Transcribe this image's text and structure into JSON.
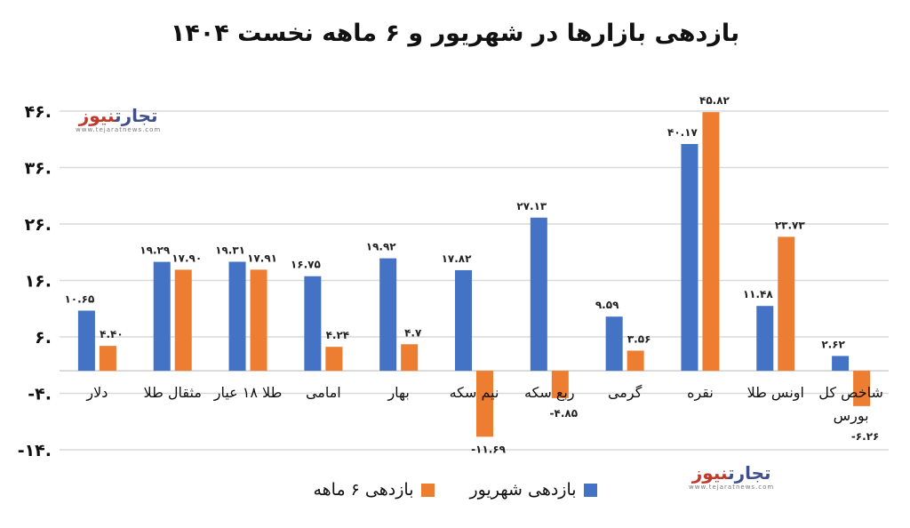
{
  "chart_data": {
    "type": "bar",
    "title": "بازدهی بازارها در شهریور و ۶ ماهه نخست ۱۴۰۴",
    "categories": [
      "دلار",
      "مثقال طلا",
      "طلا ۱۸ عیار",
      "امامی",
      "بهار",
      "نیم سکه",
      "ربع سکه",
      "گرمی",
      "نقره",
      "اونس طلا",
      "شاخص کل بورس"
    ],
    "series": [
      {
        "name": "بازدهی شهریور",
        "color": "#4472C4",
        "values": [
          10.65,
          19.29,
          19.31,
          16.75,
          19.92,
          17.82,
          27.13,
          9.59,
          40.17,
          11.48,
          2.62
        ],
        "labels": [
          "۱۰.۶۵",
          "۱۹.۲۹",
          "۱۹.۳۱",
          "۱۶.۷۵",
          "۱۹.۹۲",
          "۱۷.۸۲",
          "۲۷.۱۳",
          "۹.۵۹",
          "۴۰.۱۷",
          "۱۱.۴۸",
          "۲.۶۲"
        ]
      },
      {
        "name": "بازدهی ۶ ماهه",
        "color": "#ED7D31",
        "values": [
          4.4,
          17.9,
          17.91,
          4.24,
          4.7,
          -11.69,
          -4.85,
          3.56,
          45.82,
          23.73,
          -6.26
        ],
        "labels": [
          "۴.۴۰",
          "۱۷.۹۰",
          "۱۷.۹۱",
          "۴.۲۴",
          "۴.۷",
          "-۱۱.۶۹",
          "-۴.۸۵",
          "۳.۵۶",
          "۴۵.۸۲",
          "۲۳.۷۳",
          "-۶.۲۶"
        ]
      }
    ],
    "yticks": [
      46,
      36,
      26,
      16,
      6,
      -4,
      -14
    ],
    "ytick_labels": [
      "۴۶.",
      "۳۶.",
      "۲۶.",
      "۱۶.",
      "۶.",
      "-۴.",
      "-۱۴."
    ],
    "ylim": [
      -14,
      46
    ],
    "grid": true,
    "legend": "bottom"
  },
  "watermark": {
    "brand_a": "تجارت",
    "brand_b": "نیوز",
    "url": "www.tejaratnews.com"
  }
}
